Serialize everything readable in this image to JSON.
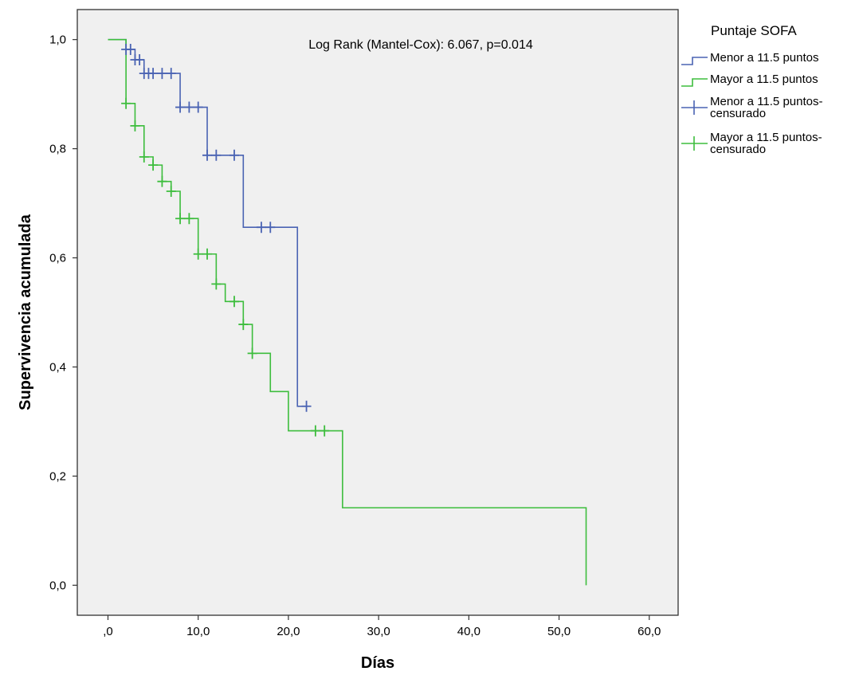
{
  "chart_data": {
    "type": "line",
    "subtype": "kaplan-meier",
    "xlabel": "Días",
    "ylabel": "Supervivencia acumulada",
    "xlim": [
      -3.4,
      63.2
    ],
    "ylim": [
      -0.055,
      1.055
    ],
    "x_ticks": [
      {
        "value": 0,
        "label": ",0"
      },
      {
        "value": 10,
        "label": "10,0"
      },
      {
        "value": 20,
        "label": "20,0"
      },
      {
        "value": 30,
        "label": "30,0"
      },
      {
        "value": 40,
        "label": "40,0"
      },
      {
        "value": 50,
        "label": "50,0"
      },
      {
        "value": 60,
        "label": "60,0"
      }
    ],
    "y_ticks": [
      {
        "value": 0.0,
        "label": "0,0"
      },
      {
        "value": 0.2,
        "label": "0,2"
      },
      {
        "value": 0.4,
        "label": "0,4"
      },
      {
        "value": 0.6,
        "label": "0,6"
      },
      {
        "value": 0.8,
        "label": "0,8"
      },
      {
        "value": 1.0,
        "label": "1,0"
      }
    ],
    "grid": false,
    "annotation": "Log Rank (Mantel-Cox): 6.067, p=0.014",
    "legend": {
      "title": "Puntaje SOFA",
      "placement": "right-outside",
      "entries": [
        {
          "kind": "step",
          "series": 0,
          "lines": [
            "Menor a 11.5 puntos"
          ]
        },
        {
          "kind": "step",
          "series": 1,
          "lines": [
            "Mayor a 11.5 puntos"
          ]
        },
        {
          "kind": "censor",
          "series": 0,
          "lines": [
            "Menor a 11.5 puntos-",
            "censurado"
          ]
        },
        {
          "kind": "censor",
          "series": 1,
          "lines": [
            "Mayor a 11.5 puntos-",
            "censurado"
          ]
        }
      ]
    },
    "series": [
      {
        "name": "Menor a 11.5 puntos",
        "color": "#4a63b3",
        "steps": [
          [
            0,
            1.0
          ],
          [
            2,
            0.982
          ],
          [
            3,
            0.963
          ],
          [
            4,
            0.938
          ],
          [
            8,
            0.876
          ],
          [
            11,
            0.788
          ],
          [
            15,
            0.656
          ],
          [
            21,
            0.328
          ],
          [
            22,
            0.328
          ]
        ],
        "censored": [
          [
            2,
            0.982
          ],
          [
            2.5,
            0.982
          ],
          [
            3,
            0.963
          ],
          [
            3.5,
            0.963
          ],
          [
            4,
            0.938
          ],
          [
            4.5,
            0.938
          ],
          [
            5,
            0.938
          ],
          [
            6,
            0.938
          ],
          [
            7,
            0.938
          ],
          [
            8,
            0.876
          ],
          [
            9,
            0.876
          ],
          [
            10,
            0.876
          ],
          [
            11,
            0.788
          ],
          [
            12,
            0.788
          ],
          [
            14,
            0.788
          ],
          [
            17,
            0.656
          ],
          [
            18,
            0.656
          ],
          [
            22,
            0.328
          ]
        ]
      },
      {
        "name": "Mayor a 11.5 puntos",
        "color": "#3dbd3d",
        "steps": [
          [
            0,
            1.0
          ],
          [
            2,
            0.883
          ],
          [
            3,
            0.842
          ],
          [
            4,
            0.785
          ],
          [
            5,
            0.77
          ],
          [
            6,
            0.74
          ],
          [
            7,
            0.722
          ],
          [
            8,
            0.672
          ],
          [
            10,
            0.607
          ],
          [
            12,
            0.552
          ],
          [
            13,
            0.52
          ],
          [
            15,
            0.478
          ],
          [
            16,
            0.425
          ],
          [
            18,
            0.355
          ],
          [
            20,
            0.283
          ],
          [
            26,
            0.142
          ],
          [
            53,
            0.0
          ]
        ],
        "censored": [
          [
            2,
            0.883
          ],
          [
            3,
            0.842
          ],
          [
            4,
            0.785
          ],
          [
            5,
            0.77
          ],
          [
            6,
            0.74
          ],
          [
            7,
            0.722
          ],
          [
            8,
            0.672
          ],
          [
            9,
            0.672
          ],
          [
            10,
            0.607
          ],
          [
            11,
            0.607
          ],
          [
            12,
            0.552
          ],
          [
            14,
            0.52
          ],
          [
            15,
            0.478
          ],
          [
            16,
            0.425
          ],
          [
            23,
            0.283
          ],
          [
            24,
            0.283
          ]
        ]
      }
    ]
  }
}
